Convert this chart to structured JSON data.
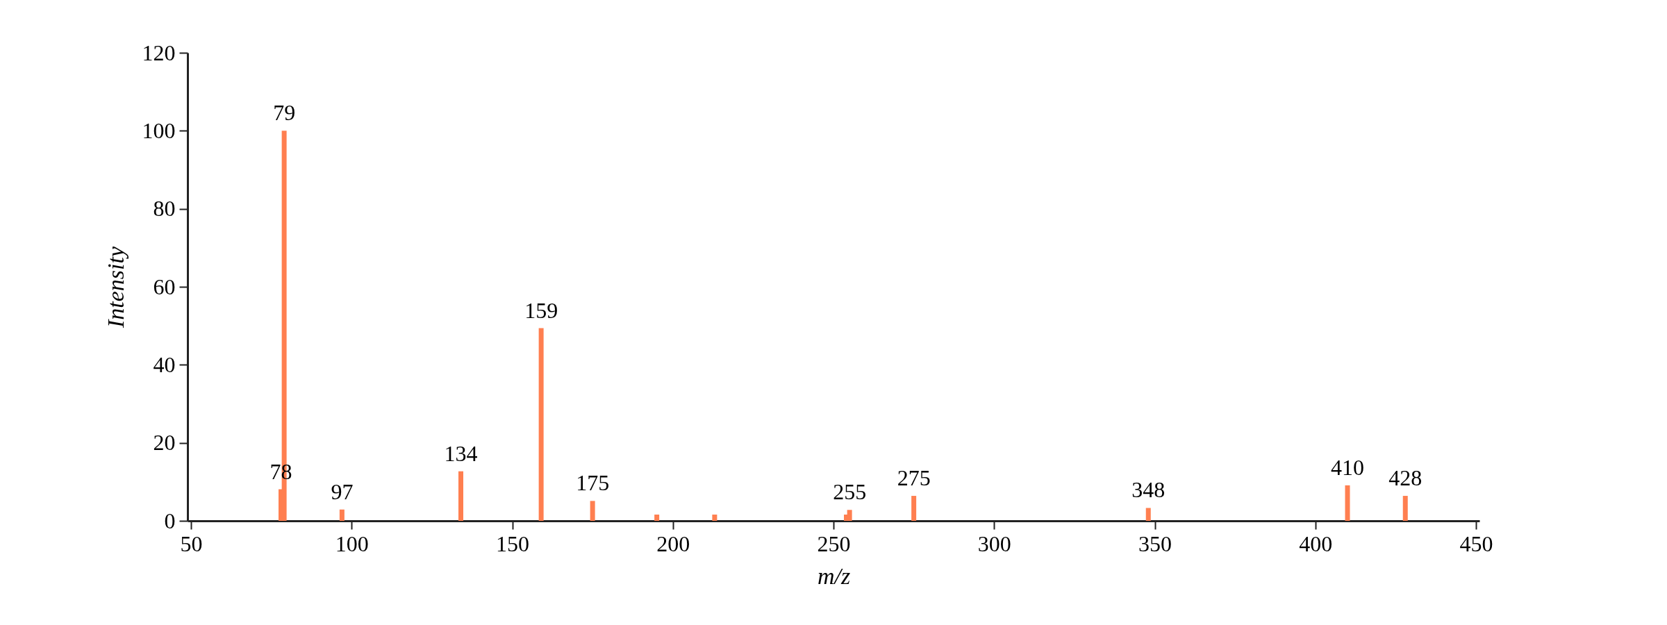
{
  "chart_data": {
    "type": "bar",
    "xlabel": "m/z",
    "ylabel": "Intensity",
    "x": [
      78,
      79,
      97,
      134,
      159,
      175,
      195,
      213,
      254,
      255,
      275,
      348,
      410,
      428
    ],
    "series": [
      {
        "color": "#ff7f50",
        "values": [
          8.1,
          100,
          2.9,
          12.7,
          49.4,
          5.1,
          1.6,
          1.6,
          1.6,
          2.8,
          6.4,
          3.3,
          9.1,
          6.4
        ]
      }
    ],
    "xlim": [
      50,
      450
    ],
    "xticks": [
      50,
      100,
      150,
      200,
      250,
      300,
      350,
      400,
      450
    ],
    "ylim": [
      0,
      120
    ],
    "yticks": [
      0,
      20,
      40,
      60,
      80,
      100,
      120
    ],
    "grid": false,
    "annotations": [
      {
        "text": "79",
        "x": 79,
        "y": 100
      },
      {
        "text": "78",
        "x": 78,
        "y": 8.1
      },
      {
        "text": "97",
        "x": 97,
        "y": 2.9
      },
      {
        "text": "134",
        "x": 134,
        "y": 12.7
      },
      {
        "text": "159",
        "x": 159,
        "y": 49.4
      },
      {
        "text": "175",
        "x": 175,
        "y": 5.1
      },
      {
        "text": "255",
        "x": 255,
        "y": 2.8
      },
      {
        "text": "275",
        "x": 275,
        "y": 6.4
      },
      {
        "text": "348",
        "x": 348,
        "y": 3.3
      },
      {
        "text": "410",
        "x": 410,
        "y": 9.1
      },
      {
        "text": "428",
        "x": 428,
        "y": 6.4
      }
    ]
  }
}
